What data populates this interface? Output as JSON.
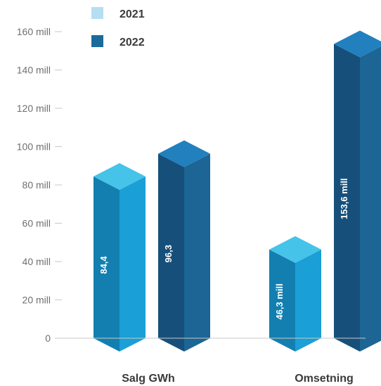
{
  "chart_data": {
    "type": "bar",
    "style": "3d-columns",
    "categories": [
      "Salg GWh",
      "Omsetning"
    ],
    "series": [
      {
        "name": "2021",
        "values": [
          84.4,
          46.3
        ],
        "labels": [
          "84,4",
          "46,3 mill"
        ],
        "color": "#1a9fd6",
        "top_color": "#45c3e8",
        "shade_color": "#137fb0",
        "legend_color": "#b6def2"
      },
      {
        "name": "2022",
        "values": [
          96.3,
          153.6
        ],
        "labels": [
          "96,3",
          "153,6 mill"
        ],
        "color": "#1c6595",
        "top_color": "#2180bd",
        "shade_color": "#16507a",
        "legend_color": "#1c6a9b"
      }
    ],
    "ylim": [
      0,
      160
    ],
    "yticks": [
      0,
      20,
      40,
      60,
      80,
      100,
      120,
      140,
      160
    ],
    "ytick_labels": [
      "0",
      "20 mill",
      "40 mill",
      "60 mill",
      "80 mill",
      "100 mill",
      "120 mill",
      "140 mill",
      "160 mill"
    ],
    "legend_position": "top-left",
    "grid": false,
    "axis_line_color": "#c8c8c8",
    "title": "",
    "xlabel": "",
    "ylabel": ""
  }
}
